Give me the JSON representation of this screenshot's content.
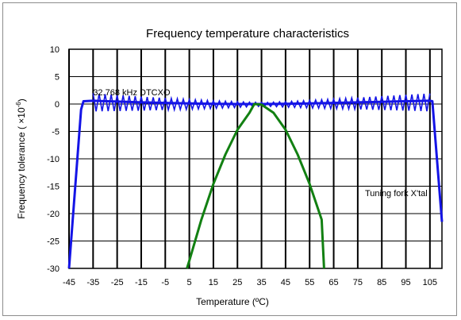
{
  "chart_data": {
    "type": "line",
    "title": "Frequency temperature characteristics",
    "xlabel": "Temperature (ºC)",
    "ylabel": "Frequency tolerance ( ×10",
    "ylabel_sup": "-6",
    "ylabel_close": ")",
    "xlim": [
      -45,
      110
    ],
    "ylim": [
      -30,
      10
    ],
    "xticks": [
      -45,
      -35,
      -25,
      -15,
      -5,
      5,
      15,
      25,
      35,
      45,
      55,
      65,
      75,
      85,
      95,
      105
    ],
    "yticks": [
      10,
      5,
      0,
      -5,
      -10,
      -15,
      -20,
      -25,
      -30
    ],
    "grid": true,
    "annotations": [
      {
        "text": "32.768 kHz DTCXO",
        "x": -35,
        "y": 1.6
      },
      {
        "text": "Tuning fork X'tal",
        "x": 78,
        "y": -16.8
      }
    ],
    "series": [
      {
        "color": "#1414e6",
        "x": [
          -45,
          -40,
          -39,
          -35,
          -25,
          -15,
          -5,
          5,
          15,
          25,
          35,
          45,
          55,
          65,
          75,
          85,
          95,
          105,
          106,
          110
        ],
        "y": [
          -30,
          -1,
          0.5,
          0.6,
          0.45,
          0.3,
          0.2,
          0.1,
          0.03,
          0.0,
          0.0,
          0.03,
          0.1,
          0.2,
          0.3,
          0.4,
          0.5,
          0.6,
          0.5,
          -21.5
        ],
        "band": [
          -35,
          106
        ]
      },
      {
        "color": "#128012",
        "x": [
          4,
          5,
          10,
          15,
          20,
          25,
          30,
          32,
          35,
          40,
          45,
          50,
          55,
          60,
          61
        ],
        "y": [
          -30,
          -28.6,
          -21.1,
          -14.6,
          -9.2,
          -4.7,
          -1.6,
          -0.0,
          -0.1,
          -1.6,
          -4.7,
          -9.2,
          -14.6,
          -21.1,
          -30
        ]
      }
    ]
  }
}
